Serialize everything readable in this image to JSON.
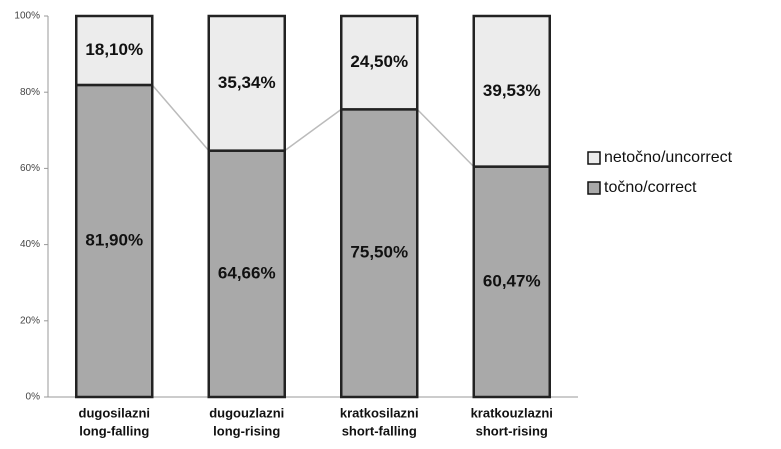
{
  "chart_data": {
    "type": "stacked-bar",
    "categories": [
      [
        "dugosilazni",
        "long-falling"
      ],
      [
        "dugouzlazni",
        "long-rising"
      ],
      [
        "kratkosilazni",
        "short-falling"
      ],
      [
        "kratkouzlazni",
        "short-rising"
      ]
    ],
    "series": [
      {
        "name": "točno/correct",
        "color": "#a9a9a9",
        "values": [
          81.9,
          64.66,
          75.5,
          60.47
        ],
        "value_labels": [
          "81,90%",
          "64,66%",
          "75,50%",
          "60,47%"
        ]
      },
      {
        "name": "netočno/uncorrect",
        "color": "#ececec",
        "values": [
          18.1,
          35.34,
          24.5,
          39.53
        ],
        "value_labels": [
          "18,10%",
          "35,34%",
          "24,50%",
          "39,53%"
        ]
      }
    ],
    "ylim": [
      0,
      100
    ],
    "yticks": [
      {
        "value": 0,
        "label": "0%"
      },
      {
        "value": 20,
        "label": "20%"
      },
      {
        "value": 40,
        "label": "40%"
      },
      {
        "value": 60,
        "label": "60%"
      },
      {
        "value": 80,
        "label": "80%"
      },
      {
        "value": 100,
        "label": "100%"
      }
    ],
    "legend": "right"
  }
}
